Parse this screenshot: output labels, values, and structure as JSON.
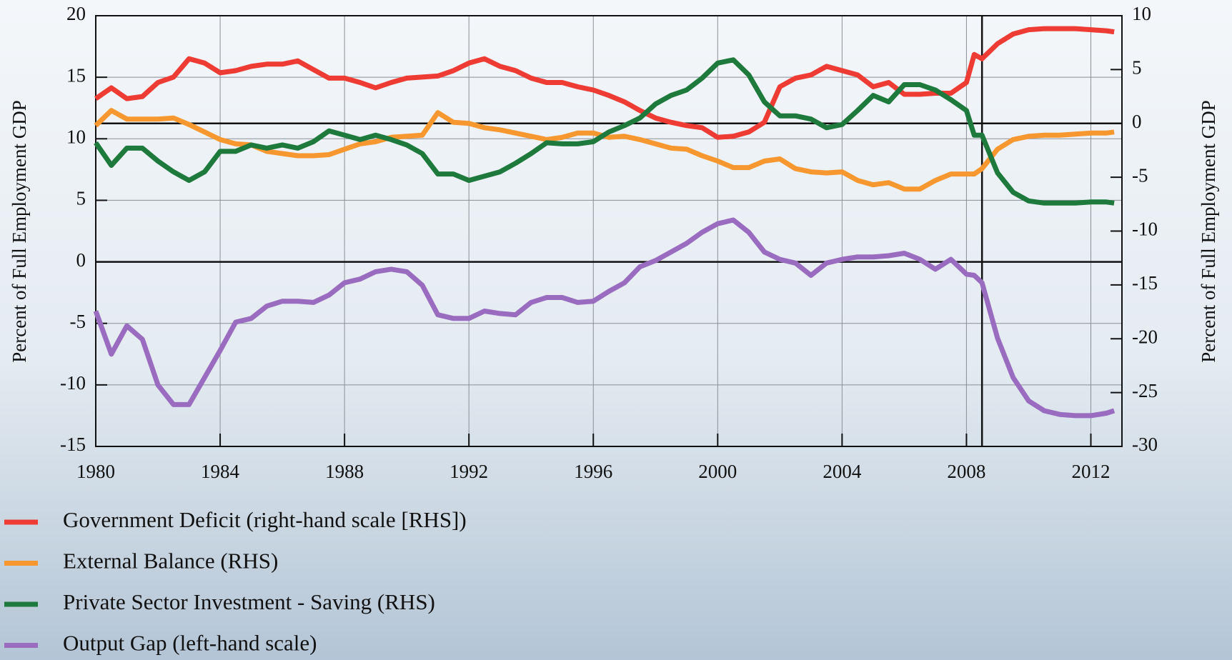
{
  "chart_data": {
    "type": "line",
    "ylabel": "Percent of Full Employment GDP",
    "y2label": "Percent of Full Employment GDP",
    "x": [
      1980,
      1980.5,
      1981,
      1981.5,
      1982,
      1982.5,
      1983,
      1983.5,
      1984,
      1984.5,
      1985,
      1985.5,
      1986,
      1986.5,
      1987,
      1987.5,
      1988,
      1988.5,
      1989,
      1989.5,
      1990,
      1990.5,
      1991,
      1991.5,
      1992,
      1992.5,
      1993,
      1993.5,
      1994,
      1994.5,
      1995,
      1995.5,
      1996,
      1996.5,
      1997,
      1997.5,
      1998,
      1998.5,
      1999,
      1999.5,
      2000,
      2000.5,
      2001,
      2001.5,
      2002,
      2002.5,
      2003,
      2003.5,
      2004,
      2004.5,
      2005,
      2005.5,
      2006,
      2006.5,
      2007,
      2007.5,
      2008,
      2008.25,
      2008.5,
      2009,
      2009.5,
      2010,
      2010.5,
      2011,
      2011.5,
      2012,
      2012.5,
      2012.75
    ],
    "series": [
      {
        "name": "Government Deficit (right-hand scale [RHS])",
        "color": "#ee3b33",
        "axis": "y2",
        "values": [
          2.3,
          3.3,
          2.3,
          2.5,
          3.8,
          4.3,
          6.0,
          5.6,
          4.7,
          4.9,
          5.3,
          5.5,
          5.5,
          5.8,
          5.0,
          4.2,
          4.2,
          3.8,
          3.3,
          3.8,
          4.2,
          4.3,
          4.4,
          4.9,
          5.6,
          6.0,
          5.3,
          4.9,
          4.2,
          3.8,
          3.8,
          3.4,
          3.1,
          2.6,
          2.0,
          1.2,
          0.5,
          0.1,
          -0.2,
          -0.4,
          -1.3,
          -1.2,
          -0.8,
          0.1,
          3.4,
          4.2,
          4.5,
          5.3,
          4.9,
          4.5,
          3.4,
          3.8,
          2.7,
          2.7,
          2.8,
          2.8,
          3.8,
          6.4,
          6.0,
          7.4,
          8.3,
          8.7,
          8.8,
          8.8,
          8.8,
          8.7,
          8.6,
          8.5
        ]
      },
      {
        "name": "External Balance (RHS)",
        "color": "#f7972f",
        "axis": "y2",
        "values": [
          -0.2,
          1.2,
          0.4,
          0.4,
          0.4,
          0.5,
          -0.1,
          -0.8,
          -1.5,
          -1.9,
          -2.0,
          -2.6,
          -2.8,
          -3.0,
          -3.0,
          -2.9,
          -2.4,
          -1.9,
          -1.7,
          -1.3,
          -1.2,
          -1.1,
          1.0,
          0.1,
          0.0,
          -0.4,
          -0.6,
          -0.9,
          -1.2,
          -1.5,
          -1.3,
          -0.9,
          -0.9,
          -1.3,
          -1.2,
          -1.5,
          -1.9,
          -2.3,
          -2.4,
          -3.0,
          -3.5,
          -4.1,
          -4.1,
          -3.5,
          -3.3,
          -4.2,
          -4.5,
          -4.6,
          -4.5,
          -5.3,
          -5.7,
          -5.5,
          -6.1,
          -6.1,
          -5.3,
          -4.7,
          -4.7,
          -4.7,
          -4.2,
          -2.4,
          -1.5,
          -1.2,
          -1.1,
          -1.1,
          -1.0,
          -0.9,
          -0.9,
          -0.8
        ]
      },
      {
        "name": "Private Sector Investment - Saving (RHS)",
        "color": "#1e7a3c",
        "axis": "y2",
        "values": [
          -1.8,
          -3.9,
          -2.3,
          -2.3,
          -3.5,
          -4.5,
          -5.3,
          -4.5,
          -2.6,
          -2.6,
          -2.0,
          -2.3,
          -2.0,
          -2.3,
          -1.7,
          -0.7,
          -1.1,
          -1.5,
          -1.1,
          -1.5,
          -2.0,
          -2.8,
          -4.7,
          -4.7,
          -5.3,
          -4.9,
          -4.5,
          -3.7,
          -2.8,
          -1.8,
          -1.9,
          -1.9,
          -1.7,
          -0.8,
          -0.2,
          0.5,
          1.8,
          2.6,
          3.1,
          4.2,
          5.6,
          5.9,
          4.5,
          2.0,
          0.7,
          0.7,
          0.4,
          -0.4,
          -0.1,
          1.2,
          2.6,
          2.0,
          3.6,
          3.6,
          3.1,
          2.2,
          1.2,
          -1.1,
          -1.1,
          -4.6,
          -6.4,
          -7.2,
          -7.4,
          -7.4,
          -7.4,
          -7.3,
          -7.3,
          -7.4
        ]
      },
      {
        "name": "Output Gap (left-hand scale)",
        "color": "#9a6cc0",
        "axis": "y",
        "values": [
          -4.0,
          -7.5,
          -5.2,
          -6.3,
          -10.0,
          -11.6,
          -11.6,
          -9.4,
          -7.2,
          -4.9,
          -4.6,
          -3.6,
          -3.2,
          -3.2,
          -3.3,
          -2.7,
          -1.7,
          -1.4,
          -0.8,
          -0.6,
          -0.8,
          -1.9,
          -4.3,
          -4.6,
          -4.6,
          -4.0,
          -4.2,
          -4.3,
          -3.3,
          -2.9,
          -2.9,
          -3.3,
          -3.2,
          -2.4,
          -1.7,
          -0.4,
          0.1,
          0.8,
          1.5,
          2.4,
          3.1,
          3.4,
          2.4,
          0.8,
          0.2,
          -0.1,
          -1.1,
          -0.1,
          0.2,
          0.4,
          0.4,
          0.5,
          0.7,
          0.2,
          -0.6,
          0.2,
          -1.0,
          -1.1,
          -1.7,
          -6.2,
          -9.4,
          -11.3,
          -12.1,
          -12.4,
          -12.5,
          -12.5,
          -12.3,
          -12.1
        ]
      }
    ],
    "xlim": [
      1980,
      2013
    ],
    "xticks": [
      1980,
      1984,
      1988,
      1992,
      1996,
      2000,
      2004,
      2008,
      2012
    ],
    "ylim": [
      -15,
      20
    ],
    "yticks": [
      -15,
      -10,
      -5,
      0,
      5,
      10,
      15,
      20
    ],
    "y2lim": [
      -30,
      10
    ],
    "y2ticks": [
      -30,
      -25,
      -20,
      -15,
      -10,
      -5,
      0,
      5,
      10
    ],
    "vline": 2008.5,
    "grid": true,
    "legend": "bottom-left"
  }
}
